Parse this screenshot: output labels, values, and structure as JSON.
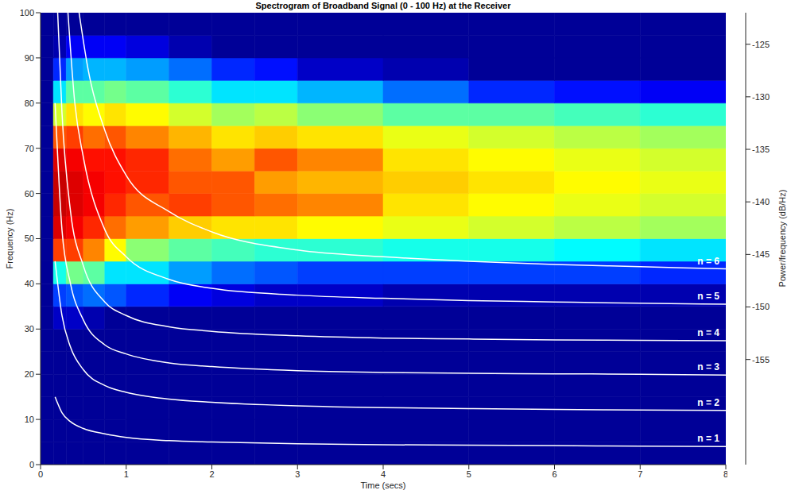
{
  "chart_data": {
    "type": "heatmap",
    "title": "Spectrogram of Broadband Signal (0 - 100 Hz) at the Receiver",
    "x_label": "Time (secs)",
    "y_label": "Frequency (Hz)",
    "xlim": [
      0,
      8
    ],
    "xticks": [
      0,
      1,
      2,
      3,
      4,
      5,
      6,
      7,
      8
    ],
    "ylim": [
      0,
      100
    ],
    "yticks": [
      0,
      10,
      20,
      30,
      40,
      50,
      60,
      70,
      80,
      90,
      100
    ],
    "grid": false,
    "heatmap": {
      "x_edges": [
        0,
        0.15,
        0.3,
        0.5,
        0.75,
        1,
        1.5,
        2,
        2.5,
        3,
        4,
        5,
        6,
        7,
        8
      ],
      "y_edges": [
        0,
        5,
        10,
        15,
        20,
        25,
        30,
        35,
        40,
        45,
        50,
        55,
        60,
        65,
        70,
        75,
        80,
        85,
        90,
        95,
        100
      ],
      "values": [
        [
          -164,
          -164,
          -164,
          -164,
          -164,
          -164,
          -164,
          -164,
          -164,
          -164,
          -164,
          -164,
          -164,
          -164
        ],
        [
          -164,
          -164,
          -164,
          -164,
          -164,
          -164,
          -164,
          -164,
          -164,
          -164,
          -164,
          -164,
          -164,
          -164
        ],
        [
          -164,
          -164,
          -164,
          -164,
          -164,
          -164,
          -164,
          -164,
          -164,
          -164,
          -164,
          -164,
          -164,
          -164
        ],
        [
          -164,
          -164,
          -164,
          -164,
          -164,
          -164,
          -164,
          -164,
          -164,
          -164,
          -164,
          -164,
          -164,
          -164
        ],
        [
          -164,
          -164,
          -164,
          -164,
          -164,
          -164,
          -164,
          -164,
          -164,
          -164,
          -164,
          -164,
          -164,
          -164
        ],
        [
          -164,
          -164,
          -164,
          -164,
          -164,
          -164,
          -164,
          -164,
          -164,
          -164,
          -164,
          -164,
          -164,
          -164
        ],
        [
          -164,
          -162,
          -162,
          -163,
          -164,
          -164,
          -164,
          -164,
          -164,
          -164,
          -164,
          -164,
          -164,
          -164
        ],
        [
          -164,
          -157,
          -156,
          -155,
          -156,
          -158,
          -160,
          -161,
          -162,
          -162,
          -163,
          -163,
          -163,
          -163
        ],
        [
          -164,
          -148,
          -144,
          -145,
          -150,
          -150,
          -153,
          -155,
          -156,
          -157,
          -157,
          -157,
          -157,
          -158
        ],
        [
          -164,
          -130,
          -130,
          -133,
          -138,
          -143,
          -145,
          -146,
          -147,
          -147,
          -148,
          -148,
          -149,
          -150
        ],
        [
          -164,
          -126,
          -127,
          -129,
          -132,
          -134,
          -136,
          -137,
          -137,
          -138,
          -139,
          -140,
          -141,
          -142
        ],
        [
          -164,
          -125,
          -126,
          -127,
          -129,
          -131,
          -130,
          -131,
          -132,
          -133,
          -137,
          -138,
          -139,
          -140
        ],
        [
          -164,
          -125,
          -126,
          -127,
          -128,
          -129,
          -131,
          -131,
          -134,
          -135,
          -136,
          -137,
          -138,
          -139
        ],
        [
          -164,
          -126,
          -127,
          -128,
          -128,
          -129,
          -132,
          -134,
          -131,
          -133,
          -137,
          -138,
          -139,
          -140
        ],
        [
          -164,
          -131,
          -130,
          -132,
          -131,
          -133,
          -135,
          -137,
          -136,
          -137,
          -139,
          -140,
          -141,
          -142
        ],
        [
          -164,
          -140,
          -137,
          -138,
          -137,
          -138,
          -140,
          -142,
          -141,
          -143,
          -145,
          -145,
          -146,
          -147
        ],
        [
          -164,
          -150,
          -145,
          -145,
          -144,
          -145,
          -147,
          -150,
          -150,
          -152,
          -155,
          -158,
          -159,
          -160
        ],
        [
          -164,
          -158,
          -153,
          -152,
          -152,
          -153,
          -155,
          -158,
          -159,
          -162,
          -163,
          -164,
          -164,
          -164
        ],
        [
          -164,
          -163,
          -160,
          -160,
          -160,
          -161,
          -163,
          -164,
          -164,
          -164,
          -164,
          -164,
          -164,
          -164
        ],
        [
          -164,
          -164,
          -164,
          -164,
          -164,
          -164,
          -164,
          -164,
          -164,
          -164,
          -164,
          -164,
          -164,
          -164
        ]
      ]
    },
    "colorbar": {
      "label": "Power/frequency (dB/Hz)",
      "range": [
        -165,
        -122
      ],
      "ticks": [
        -155,
        -150,
        -145,
        -140,
        -135,
        -130,
        -125
      ]
    },
    "series": [
      {
        "name": "n = 1",
        "type": "line",
        "color": "#ffffff",
        "x": [
          0.17,
          0.25,
          0.35,
          0.5,
          0.75,
          1,
          1.5,
          2,
          3,
          4,
          5,
          6,
          7,
          8
        ],
        "values": [
          15,
          11.5,
          9.5,
          8,
          6.8,
          6,
          5.3,
          5,
          4.6,
          4.4,
          4.3,
          4.2,
          4.1,
          4
        ]
      },
      {
        "name": "n = 2",
        "type": "line",
        "color": "#ffffff",
        "x": [
          0.17,
          0.25,
          0.35,
          0.5,
          0.75,
          1,
          1.5,
          2,
          3,
          4,
          5,
          6,
          7,
          8
        ],
        "values": [
          45,
          33,
          26,
          21,
          17.5,
          16,
          14.5,
          13.8,
          13,
          12.6,
          12.4,
          12.2,
          12.1,
          12
        ]
      },
      {
        "name": "n = 3",
        "type": "line",
        "color": "#ffffff",
        "x": [
          0.17,
          0.25,
          0.35,
          0.5,
          0.75,
          1,
          1.5,
          2,
          3,
          4,
          5,
          6,
          7,
          8
        ],
        "values": [
          80,
          52,
          40,
          32,
          26.5,
          24.5,
          22.5,
          21.7,
          20.8,
          20.4,
          20.2,
          20.1,
          20,
          19.8
        ]
      },
      {
        "name": "n = 4",
        "type": "line",
        "color": "#ffffff",
        "x": [
          0.2,
          0.25,
          0.35,
          0.5,
          0.75,
          1,
          1.5,
          2,
          3,
          4,
          5,
          6,
          7,
          8
        ],
        "values": [
          100,
          78,
          56,
          44,
          36,
          33,
          30.5,
          29.5,
          28.5,
          28,
          27.8,
          27.6,
          27.5,
          27.4
        ]
      },
      {
        "name": "n = 5",
        "type": "line",
        "color": "#ffffff",
        "x": [
          0.32,
          0.4,
          0.5,
          0.75,
          1,
          1.5,
          2,
          3,
          4,
          5,
          6,
          7,
          8
        ],
        "values": [
          100,
          80,
          68,
          52,
          46,
          41,
          39,
          37.5,
          36.8,
          36.3,
          36,
          35.7,
          35.5
        ]
      },
      {
        "name": "n = 6",
        "type": "line",
        "color": "#ffffff",
        "x": [
          0.45,
          0.55,
          0.75,
          1,
          1.5,
          2,
          3,
          4,
          5,
          6,
          7,
          8
        ],
        "values": [
          100,
          88,
          74,
          64,
          56,
          51.5,
          47.5,
          46,
          45,
          44.3,
          43.8,
          43.3
        ]
      }
    ]
  }
}
